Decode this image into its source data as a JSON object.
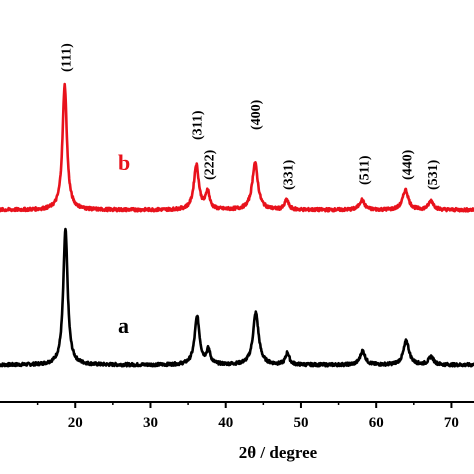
{
  "chart_data": {
    "type": "line",
    "xlabel": "2θ / degree",
    "ylabel": "",
    "xlim": [
      10,
      73
    ],
    "x_ticks": [
      20,
      30,
      40,
      50,
      60,
      70
    ],
    "x_tick_labels": [
      "20",
      "30",
      "40",
      "50",
      "60",
      "70"
    ],
    "grid": false,
    "series": [
      {
        "name": "a",
        "color": "#000000",
        "baseline": 0,
        "peaks": [
          {
            "x": 18.7,
            "height": 135,
            "width": 0.35
          },
          {
            "x": 36.2,
            "height": 48,
            "width": 0.4
          },
          {
            "x": 37.7,
            "height": 14,
            "width": 0.3
          },
          {
            "x": 44.0,
            "height": 52,
            "width": 0.45
          },
          {
            "x": 48.2,
            "height": 12,
            "width": 0.3
          },
          {
            "x": 58.2,
            "height": 14,
            "width": 0.4
          },
          {
            "x": 64.0,
            "height": 24,
            "width": 0.45
          },
          {
            "x": 67.3,
            "height": 8,
            "width": 0.4
          }
        ]
      },
      {
        "name": "b",
        "color": "#e8121c",
        "baseline": 0,
        "peaks": [
          {
            "x": 18.6,
            "height": 125,
            "width": 0.35
          },
          {
            "x": 36.1,
            "height": 45,
            "width": 0.4
          },
          {
            "x": 37.6,
            "height": 18,
            "width": 0.3
          },
          {
            "x": 43.9,
            "height": 47,
            "width": 0.45
          },
          {
            "x": 48.1,
            "height": 10,
            "width": 0.3
          },
          {
            "x": 58.1,
            "height": 10,
            "width": 0.4
          },
          {
            "x": 63.9,
            "height": 20,
            "width": 0.45
          },
          {
            "x": 67.3,
            "height": 9,
            "width": 0.4
          }
        ]
      }
    ],
    "annotations": [
      {
        "text": "(111)",
        "x": 18.7
      },
      {
        "text": "(311)",
        "x": 36.1
      },
      {
        "text": "(222)",
        "x": 37.7
      },
      {
        "text": "(400)",
        "x": 43.9
      },
      {
        "text": "(331)",
        "x": 48.2
      },
      {
        "text": "(511)",
        "x": 58.3
      },
      {
        "text": "(440)",
        "x": 64.0
      },
      {
        "text": "(531)",
        "x": 67.4
      }
    ]
  }
}
